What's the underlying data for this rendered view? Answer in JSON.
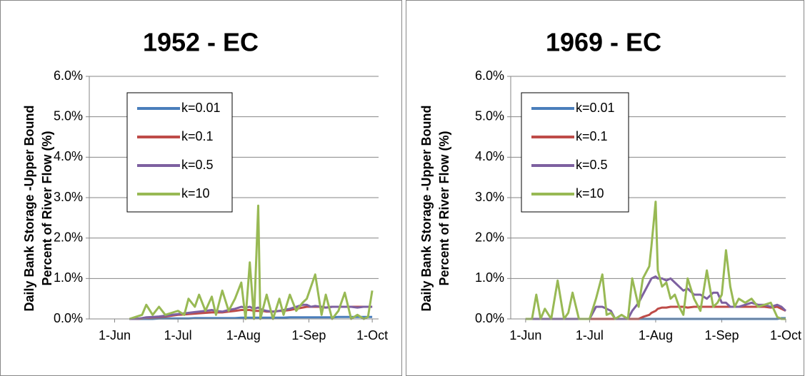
{
  "chart_data": [
    {
      "type": "line",
      "title": "1952 - EC",
      "y_label": [
        "Daily Bank Storage -Upper Bound",
        "Percent of River Flow (%)"
      ],
      "x": [
        7,
        10,
        13,
        15,
        18,
        21,
        24,
        27,
        30,
        33,
        35,
        38,
        40,
        43,
        46,
        48,
        51,
        54,
        57,
        60,
        62,
        64,
        66,
        68,
        69,
        70,
        72,
        75,
        78,
        80,
        83,
        86,
        89,
        91,
        93,
        95,
        98,
        100,
        103,
        106,
        109,
        112,
        115,
        118,
        120,
        122
      ],
      "xlim": [
        -12,
        125
      ],
      "xticks": [
        {
          "value": 0,
          "label": "1-Jun"
        },
        {
          "value": 30,
          "label": "1-Jul"
        },
        {
          "value": 61,
          "label": "1-Aug"
        },
        {
          "value": 92,
          "label": "1-Sep"
        },
        {
          "value": 122,
          "label": "1-Oct"
        }
      ],
      "ylim": [
        0,
        6
      ],
      "yticks": [
        {
          "value": 0,
          "label": "0.0%"
        },
        {
          "value": 1,
          "label": "1.0%"
        },
        {
          "value": 2,
          "label": "2.0%"
        },
        {
          "value": 3,
          "label": "3.0%"
        },
        {
          "value": 4,
          "label": "4.0%"
        },
        {
          "value": 5,
          "label": "5.0%"
        },
        {
          "value": 6,
          "label": "6.0%"
        }
      ],
      "grid": true,
      "series": [
        {
          "name": "k=0.01",
          "color": "#4a7ebb",
          "values": [
            0,
            0,
            0,
            0,
            0,
            0.01,
            0.01,
            0.01,
            0.01,
            0.01,
            0.01,
            0.02,
            0.02,
            0.02,
            0.02,
            0.02,
            0.02,
            0.02,
            0.02,
            0.03,
            0.03,
            0.03,
            0.03,
            0.03,
            0.03,
            0.03,
            0.03,
            0.03,
            0.03,
            0.03,
            0.04,
            0.04,
            0.04,
            0.04,
            0.04,
            0.04,
            0.04,
            0.04,
            0.04,
            0.05,
            0.05,
            0.05,
            0.05,
            0.05,
            0.05,
            0.05
          ]
        },
        {
          "name": "k=0.1",
          "color": "#be4b48",
          "values": [
            0,
            0,
            0.01,
            0.03,
            0.04,
            0.05,
            0.06,
            0.08,
            0.1,
            0.11,
            0.12,
            0.13,
            0.14,
            0.15,
            0.16,
            0.16,
            0.16,
            0.18,
            0.2,
            0.22,
            0.22,
            0.22,
            0.2,
            0.2,
            0.2,
            0.2,
            0.18,
            0.18,
            0.2,
            0.2,
            0.22,
            0.25,
            0.28,
            0.3,
            0.3,
            0.3,
            0.3,
            0.28,
            0.3,
            0.3,
            0.3,
            0.3,
            0.3,
            0.3,
            0.3,
            0.3
          ]
        },
        {
          "name": "k=0.5",
          "color": "#7d60a0",
          "values": [
            0,
            0,
            0.02,
            0.04,
            0.05,
            0.06,
            0.08,
            0.1,
            0.12,
            0.14,
            0.15,
            0.17,
            0.18,
            0.2,
            0.22,
            0.2,
            0.18,
            0.22,
            0.25,
            0.3,
            0.28,
            0.3,
            0.25,
            0.28,
            0.25,
            0.22,
            0.2,
            0.18,
            0.2,
            0.22,
            0.25,
            0.3,
            0.35,
            0.35,
            0.3,
            0.32,
            0.3,
            0.28,
            0.3,
            0.3,
            0.3,
            0.3,
            0.28,
            0.3,
            0.3,
            0.3
          ]
        },
        {
          "name": "k=10",
          "color": "#98b954",
          "values": [
            0,
            0.05,
            0.1,
            0.35,
            0.1,
            0.3,
            0.1,
            0.15,
            0.2,
            0.1,
            0.5,
            0.3,
            0.6,
            0.2,
            0.55,
            0.1,
            0.7,
            0.2,
            0.5,
            0.9,
            0,
            1.4,
            0,
            2.8,
            0,
            0.2,
            0.6,
            0,
            0.5,
            0.1,
            0.6,
            0.2,
            0.4,
            0.5,
            0.8,
            1.1,
            0.1,
            0.6,
            0,
            0.2,
            0.65,
            0,
            0.1,
            0,
            0.05,
            0.7
          ]
        }
      ]
    },
    {
      "type": "line",
      "title": "1969 - EC",
      "y_label": [
        "Daily Bank Storage -Upper Bound",
        "Percent of River Flow (%)"
      ],
      "x": [
        0,
        3,
        5,
        7,
        9,
        12,
        15,
        18,
        20,
        22,
        25,
        28,
        30,
        33,
        36,
        38,
        40,
        42,
        45,
        48,
        50,
        53,
        55,
        58,
        59,
        61,
        62,
        64,
        66,
        68,
        70,
        72,
        74,
        76,
        79,
        82,
        85,
        88,
        90,
        92,
        94,
        96,
        98,
        100,
        103,
        106,
        109,
        112,
        115,
        118,
        120,
        122
      ],
      "xlim": [
        -7,
        122
      ],
      "xticks": [
        {
          "value": 0,
          "label": "1-Jun"
        },
        {
          "value": 30,
          "label": "1-Jul"
        },
        {
          "value": 61,
          "label": "1-Aug"
        },
        {
          "value": 92,
          "label": "1-Sep"
        },
        {
          "value": 122,
          "label": "1-Oct"
        }
      ],
      "ylim": [
        0,
        6
      ],
      "yticks": [
        {
          "value": 0,
          "label": "0.0%"
        },
        {
          "value": 1,
          "label": "1.0%"
        },
        {
          "value": 2,
          "label": "2.0%"
        },
        {
          "value": 3,
          "label": "3.0%"
        },
        {
          "value": 4,
          "label": "4.0%"
        },
        {
          "value": 5,
          "label": "5.0%"
        },
        {
          "value": 6,
          "label": "6.0%"
        }
      ],
      "grid": true,
      "series": [
        {
          "name": "k=0.01",
          "color": "#4a7ebb",
          "values": [
            0,
            0,
            0,
            0,
            0,
            0,
            0,
            0,
            0,
            0,
            0,
            0,
            0,
            0,
            0,
            0,
            0,
            0,
            0,
            0,
            0,
            0,
            0,
            0,
            0,
            0,
            0,
            0,
            0,
            0,
            0,
            0,
            0,
            0,
            0,
            0,
            0,
            0,
            0,
            0,
            0,
            0,
            0,
            0,
            0,
            0,
            0,
            0,
            0,
            0,
            0.02,
            0.02
          ]
        },
        {
          "name": "k=0.1",
          "color": "#be4b48",
          "values": [
            0,
            0,
            0,
            0,
            0,
            0,
            0,
            0,
            0,
            0,
            0,
            0,
            0,
            0,
            0,
            0,
            0,
            0,
            0,
            0,
            0,
            0,
            0.05,
            0.1,
            0.15,
            0.2,
            0.25,
            0.28,
            0.28,
            0.3,
            0.3,
            0.3,
            0.3,
            0.28,
            0.3,
            0.3,
            0.3,
            0.3,
            0.3,
            0.3,
            0.3,
            0.3,
            0.3,
            0.3,
            0.3,
            0.3,
            0.3,
            0.3,
            0.28,
            0.3,
            0.25,
            0.2
          ]
        },
        {
          "name": "k=0.5",
          "color": "#7d60a0",
          "values": [
            0,
            0,
            0,
            0,
            0,
            0,
            0,
            0,
            0,
            0,
            0,
            0,
            0,
            0.3,
            0.3,
            0.25,
            0.2,
            0,
            0,
            0,
            0.2,
            0.4,
            0.6,
            0.9,
            1.0,
            1.05,
            1.0,
            1.0,
            0.95,
            1.0,
            0.9,
            0.8,
            0.7,
            0.75,
            0.6,
            0.6,
            0.5,
            0.65,
            0.65,
            0.4,
            0.4,
            0.3,
            0.3,
            0.3,
            0.35,
            0.4,
            0.35,
            0.35,
            0.3,
            0.35,
            0.3,
            0.2
          ]
        },
        {
          "name": "k=10",
          "color": "#98b954",
          "values": [
            0,
            0,
            0.6,
            0,
            0.25,
            0,
            0.95,
            0,
            0.15,
            0.65,
            0,
            0,
            0,
            0.5,
            1.1,
            0.1,
            0.15,
            0,
            0.1,
            0,
            1.0,
            0.3,
            1.0,
            1.3,
            1.8,
            2.9,
            1.2,
            0.8,
            0.9,
            0.5,
            0.6,
            0.3,
            0.1,
            1.0,
            0.5,
            0.2,
            1.2,
            0.3,
            0.4,
            0.6,
            1.7,
            0.8,
            0.3,
            0.5,
            0.4,
            0.5,
            0.3,
            0.35,
            0.4,
            0.05,
            0,
            0
          ]
        }
      ]
    }
  ]
}
